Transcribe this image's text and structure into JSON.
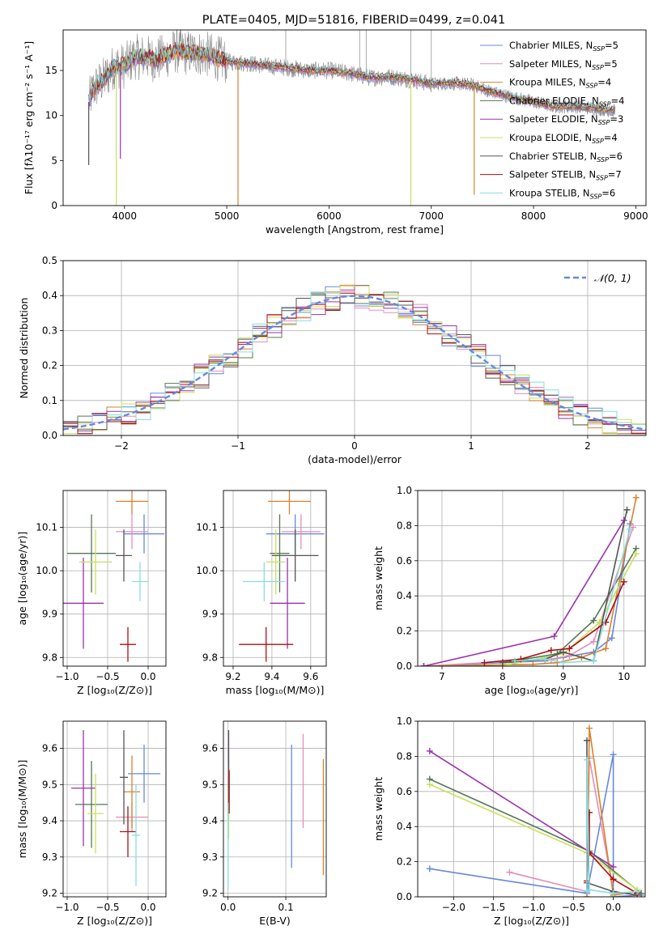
{
  "chart_data": [
    {
      "id": "spectrum",
      "type": "line",
      "title": "PLATE=0405, MJD=51816, FIBERID=0499, z=0.041",
      "xlabel": "wavelength [Angstrom, rest frame]",
      "ylabel": "Flux [fλ10⁻¹⁷ erg cm⁻² s⁻¹ A⁻¹]",
      "xlim": [
        3400,
        9100
      ],
      "ylim": [
        0,
        19.5
      ],
      "xticks": [
        4000,
        5000,
        6000,
        7000,
        8000,
        9000
      ],
      "yticks": [
        0,
        5,
        10,
        15
      ],
      "grid": false,
      "legend_position": "upper-right",
      "data": {
        "name": "data",
        "x": [
          3650,
          3700,
          3800,
          3900,
          4000,
          4100,
          4200,
          4300,
          4400,
          4500,
          4600,
          4700,
          4800,
          4900,
          5000,
          5200,
          5400,
          5600,
          5800,
          6000,
          6200,
          6400,
          6600,
          6800,
          7000,
          7200,
          7400,
          7600,
          7800,
          8000,
          8200,
          8400,
          8600,
          8800
        ],
        "y": [
          11.5,
          13,
          14,
          15.5,
          15.5,
          16.5,
          16.5,
          16.2,
          16.6,
          17.2,
          17.0,
          17.0,
          16.8,
          16.4,
          16.0,
          15.8,
          15.5,
          15.3,
          15.0,
          15.0,
          14.7,
          14.2,
          14.3,
          14.0,
          13.5,
          13.6,
          13.4,
          12.6,
          12.0,
          11.5,
          11.0,
          11.0,
          10.8,
          10.5
        ]
      },
      "spikes": [
        {
          "series": "Kroupa ELODIE",
          "x": 3920,
          "y": 0
        },
        {
          "series": "Kroupa MILES",
          "x": 5110,
          "y": 0
        },
        {
          "series": "Kroupa ELODIE",
          "x": 6800,
          "y": 0
        },
        {
          "series": "Kroupa MILES",
          "x": 7420,
          "y": 1.2
        },
        {
          "series": "Salpeter ELODIE",
          "x": 3960,
          "y": 5.2
        },
        {
          "series": "Chabrier STELIB",
          "x": 3650,
          "y": 4.5
        }
      ],
      "series": [
        {
          "name": "Chabrier MILES, N_SSP=5",
          "label_main": "Chabrier MILES, N",
          "label_sub": "SSP",
          "label_tail": "=5",
          "color": "#6688dd"
        },
        {
          "name": "Salpeter MILES, N_SSP=5",
          "label_main": "Salpeter MILES, N",
          "label_sub": "SSP",
          "label_tail": "=5",
          "color": "#e58fb8"
        },
        {
          "name": "Kroupa MILES, N_SSP=4",
          "label_main": "Kroupa MILES, N",
          "label_sub": "SSP",
          "label_tail": "=4",
          "color": "#d9822b"
        },
        {
          "name": "Chabrier ELODIE, N_SSP=4",
          "label_main": "Chabrier ELODIE, N",
          "label_sub": "SSP",
          "label_tail": "=4",
          "color": "#557755"
        },
        {
          "name": "Salpeter ELODIE, N_SSP=3",
          "label_main": "Salpeter ELODIE, N",
          "label_sub": "SSP",
          "label_tail": "=3",
          "color": "#9933aa"
        },
        {
          "name": "Kroupa ELODIE, N_SSP=4",
          "label_main": "Kroupa ELODIE, N",
          "label_sub": "SSP",
          "label_tail": "=4",
          "color": "#c8e05a"
        },
        {
          "name": "Chabrier STELIB, N_SSP=6",
          "label_main": "Chabrier STELIB, N",
          "label_sub": "SSP",
          "label_tail": "=6",
          "color": "#555555"
        },
        {
          "name": "Salpeter STELIB, N_SSP=7",
          "label_main": "Salpeter STELIB, N",
          "label_sub": "SSP",
          "label_tail": "=7",
          "color": "#aa1111"
        },
        {
          "name": "Kroupa STELIB, N_SSP=6",
          "label_main": "Kroupa STELIB, N",
          "label_sub": "SSP",
          "label_tail": "=6",
          "color": "#88dddd"
        }
      ]
    },
    {
      "id": "residuals",
      "type": "line",
      "xlabel": "(data-model)/error",
      "ylabel": "Normed distribution",
      "xlim": [
        -2.5,
        2.5
      ],
      "ylim": [
        0,
        0.5
      ],
      "xticks": [
        -2,
        -1,
        0,
        1,
        2
      ],
      "yticks": [
        0.0,
        0.1,
        0.2,
        0.3,
        0.4,
        0.5
      ],
      "grid": true,
      "legend_position": "upper-right",
      "legend": "𝒩(0, 1)",
      "gaussian": {
        "mean": 0,
        "sigma": 1,
        "color": "#6688dd"
      },
      "bin_width": 0.125
    },
    {
      "id": "age_vs_Z",
      "type": "scatter",
      "xlabel": "Z [log₁₀(Z/Z⊙)]",
      "ylabel": "age  [log₁₀(age/yr)]",
      "xlim": [
        -1.05,
        0.22
      ],
      "ylim": [
        9.78,
        10.185
      ],
      "xticks": [
        -1.0,
        -0.5,
        0.0
      ],
      "yticks": [
        9.8,
        9.9,
        10.0,
        10.1
      ],
      "grid": true,
      "points": [
        {
          "series": "Chabrier MILES",
          "x": -0.05,
          "y": 10.085,
          "xerr": 0.25,
          "yerr": 0.045
        },
        {
          "series": "Salpeter MILES",
          "x": -0.2,
          "y": 10.09,
          "xerr": 0.2,
          "yerr": 0.04
        },
        {
          "series": "Kroupa MILES",
          "x": -0.2,
          "y": 10.16,
          "xerr": 0.2,
          "yerr": 0.03
        },
        {
          "series": "Chabrier ELODIE",
          "x": -0.7,
          "y": 10.04,
          "xerr": 0.3,
          "yerr": 0.09
        },
        {
          "series": "Salpeter ELODIE",
          "x": -0.8,
          "y": 9.925,
          "xerr": 0.25,
          "yerr": 0.105
        },
        {
          "series": "Kroupa ELODIE",
          "x": -0.65,
          "y": 10.02,
          "xerr": 0.2,
          "yerr": 0.075
        },
        {
          "series": "Chabrier STELIB",
          "x": -0.3,
          "y": 10.035,
          "xerr": 0.1,
          "yerr": 0.06
        },
        {
          "series": "Salpeter STELIB",
          "x": -0.25,
          "y": 9.83,
          "xerr": 0.1,
          "yerr": 0.04
        },
        {
          "series": "Kroupa STELIB",
          "x": -0.1,
          "y": 9.975,
          "xerr": 0.1,
          "yerr": 0.045
        }
      ]
    },
    {
      "id": "age_vs_mass",
      "type": "scatter",
      "xlabel": "mass [log₁₀(M/M⊙)]",
      "ylabel": "",
      "xlim": [
        9.15,
        9.68
      ],
      "ylim": [
        9.78,
        10.185
      ],
      "xticks": [
        9.2,
        9.4,
        9.6
      ],
      "yticks": [
        9.8,
        9.9,
        10.0,
        10.1
      ],
      "grid": true,
      "points": [
        {
          "series": "Chabrier MILES",
          "x": 9.52,
          "y": 10.085,
          "xerr": 0.15,
          "yerr": 0.045
        },
        {
          "series": "Salpeter MILES",
          "x": 9.55,
          "y": 10.09,
          "xerr": 0.1,
          "yerr": 0.04
        },
        {
          "series": "Kroupa MILES",
          "x": 9.49,
          "y": 10.16,
          "xerr": 0.11,
          "yerr": 0.03
        },
        {
          "series": "Chabrier ELODIE",
          "x": 9.44,
          "y": 10.04,
          "xerr": 0.05,
          "yerr": 0.09
        },
        {
          "series": "Salpeter ELODIE",
          "x": 9.48,
          "y": 9.925,
          "xerr": 0.09,
          "yerr": 0.105
        },
        {
          "series": "Kroupa ELODIE",
          "x": 9.42,
          "y": 10.02,
          "xerr": 0.05,
          "yerr": 0.075
        },
        {
          "series": "Chabrier STELIB",
          "x": 9.52,
          "y": 10.035,
          "xerr": 0.12,
          "yerr": 0.06
        },
        {
          "series": "Salpeter STELIB",
          "x": 9.37,
          "y": 9.83,
          "xerr": 0.14,
          "yerr": 0.04
        },
        {
          "series": "Kroupa STELIB",
          "x": 9.36,
          "y": 9.975,
          "xerr": 0.11,
          "yerr": 0.045
        }
      ]
    },
    {
      "id": "mass_weight_vs_age",
      "type": "line",
      "xlabel": "age  [log₁₀(age/yr)]",
      "ylabel": "mass weight",
      "xlim": [
        6.6,
        10.35
      ],
      "ylim": [
        0,
        1.0
      ],
      "xticks": [
        7,
        8,
        9,
        10
      ],
      "yticks": [
        0.0,
        0.2,
        0.4,
        0.6,
        0.8,
        1.0
      ],
      "grid": true,
      "series": [
        {
          "series": "Chabrier MILES",
          "x": [
            6.7,
            8.0,
            8.7,
            9.0,
            9.5,
            9.8,
            10.1
          ],
          "y": [
            0.0,
            0.02,
            0.03,
            0.05,
            0.08,
            0.16,
            0.81
          ]
        },
        {
          "series": "Salpeter MILES",
          "x": [
            6.7,
            8.2,
            8.8,
            9.1,
            9.5,
            10.15
          ],
          "y": [
            0.0,
            0.03,
            0.04,
            0.06,
            0.14,
            0.79
          ]
        },
        {
          "series": "Kroupa MILES",
          "x": [
            6.7,
            8.5,
            8.9,
            9.3,
            9.7,
            10.2
          ],
          "y": [
            0.0,
            0.01,
            0.02,
            0.05,
            0.1,
            0.96
          ]
        },
        {
          "series": "Chabrier ELODIE",
          "x": [
            8.0,
            8.9,
            9.5,
            10.2
          ],
          "y": [
            0.02,
            0.07,
            0.26,
            0.67
          ]
        },
        {
          "series": "Salpeter ELODIE",
          "x": [
            6.7,
            8.85,
            10.0
          ],
          "y": [
            0.0,
            0.17,
            0.83
          ]
        },
        {
          "series": "Kroupa ELODIE",
          "x": [
            8.1,
            9.0,
            9.6,
            10.2
          ],
          "y": [
            0.01,
            0.07,
            0.25,
            0.64
          ]
        },
        {
          "series": "Chabrier STELIB",
          "x": [
            8.0,
            8.7,
            9.0,
            9.5,
            10.05
          ],
          "y": [
            0.02,
            0.04,
            0.08,
            0.03,
            0.89
          ]
        },
        {
          "series": "Salpeter STELIB",
          "x": [
            7.7,
            8.3,
            8.8,
            9.1,
            9.7,
            10.0
          ],
          "y": [
            0.02,
            0.04,
            0.09,
            0.1,
            0.25,
            0.48
          ]
        },
        {
          "series": "Kroupa STELIB",
          "x": [
            8.2,
            8.7,
            9.0,
            9.5,
            10.1
          ],
          "y": [
            0.03,
            0.04,
            0.02,
            0.03,
            0.78
          ]
        }
      ]
    },
    {
      "id": "mass_vs_Z",
      "type": "scatter",
      "xlabel": "Z [log₁₀(Z/Z⊙)]",
      "ylabel": "mass [log₁₀(M/M⊙)]",
      "xlim": [
        -1.05,
        0.22
      ],
      "ylim": [
        9.19,
        9.675
      ],
      "xticks": [
        -1.0,
        -0.5,
        0.0
      ],
      "yticks": [
        9.2,
        9.3,
        9.4,
        9.5,
        9.6
      ],
      "grid": true,
      "points": [
        {
          "series": "Chabrier MILES",
          "x": -0.05,
          "y": 9.53,
          "xerr": 0.2,
          "yerr": 0.08
        },
        {
          "series": "Salpeter MILES",
          "x": -0.2,
          "y": 9.41,
          "xerr": 0.2,
          "yerr": 0.04
        },
        {
          "series": "Kroupa MILES",
          "x": -0.2,
          "y": 9.48,
          "xerr": 0.1,
          "yerr": 0.1
        },
        {
          "series": "Chabrier ELODIE",
          "x": -0.7,
          "y": 9.445,
          "xerr": 0.2,
          "yerr": 0.12
        },
        {
          "series": "Salpeter ELODIE",
          "x": -0.8,
          "y": 9.49,
          "xerr": 0.15,
          "yerr": 0.16
        },
        {
          "series": "Kroupa ELODIE",
          "x": -0.65,
          "y": 9.42,
          "xerr": 0.1,
          "yerr": 0.11
        },
        {
          "series": "Chabrier STELIB",
          "x": -0.3,
          "y": 9.52,
          "xerr": 0.05,
          "yerr": 0.13
        },
        {
          "series": "Salpeter STELIB",
          "x": -0.25,
          "y": 9.37,
          "xerr": 0.1,
          "yerr": 0.07
        },
        {
          "series": "Kroupa STELIB",
          "x": -0.15,
          "y": 9.36,
          "xerr": 0.05,
          "yerr": 0.14
        }
      ]
    },
    {
      "id": "mass_vs_EBV",
      "type": "scatter",
      "xlabel": "E(B-V)",
      "ylabel": "",
      "xlim": [
        -0.008,
        0.17
      ],
      "ylim": [
        9.19,
        9.675
      ],
      "xticks": [
        0.0,
        0.1
      ],
      "yticks": [
        9.2,
        9.3,
        9.4,
        9.5,
        9.6
      ],
      "grid": true,
      "points": [
        {
          "series": "Chabrier MILES",
          "x": 0.11,
          "y": 9.44,
          "yerr": 0.17
        },
        {
          "series": "Salpeter MILES",
          "x": 0.13,
          "y": 9.51,
          "yerr": 0.13
        },
        {
          "series": "Kroupa MILES",
          "x": 0.165,
          "y": 9.41,
          "yerr": 0.16
        },
        {
          "series": "Chabrier ELODIE",
          "x": 0.001,
          "y": 9.5,
          "yerr": 0.1
        },
        {
          "series": "Salpeter ELODIE",
          "x": 0.001,
          "y": 9.55,
          "yerr": 0.1
        },
        {
          "series": "Kroupa ELODIE",
          "x": 0.001,
          "y": 9.45,
          "yerr": 0.1
        },
        {
          "series": "Chabrier STELIB",
          "x": 0.001,
          "y": 9.55,
          "yerr": 0.1
        },
        {
          "series": "Salpeter STELIB",
          "x": 0.002,
          "y": 9.48,
          "yerr": 0.06
        },
        {
          "series": "Kroupa STELIB",
          "x": 0.0,
          "y": 9.33,
          "yerr": 0.12
        }
      ]
    },
    {
      "id": "mass_weight_vs_Z",
      "type": "line",
      "xlabel": "Z [log₁₀(Z/Z⊙)]",
      "ylabel": "mass weight",
      "xlim": [
        -2.45,
        0.4
      ],
      "ylim": [
        0,
        1.0
      ],
      "xticks": [
        -2.0,
        -1.5,
        -1.0,
        -0.5,
        0.0
      ],
      "yticks": [
        0.0,
        0.2,
        0.4,
        0.6,
        0.8,
        1.0
      ],
      "grid": true,
      "series": [
        {
          "series": "Chabrier MILES",
          "x": [
            -2.3,
            -0.33,
            0.0,
            0.0,
            0.35
          ],
          "y": [
            0.16,
            0.02,
            0.81,
            0.0,
            0.01
          ]
        },
        {
          "series": "Salpeter MILES",
          "x": [
            -1.3,
            -0.33,
            -0.3,
            0.0,
            0.3
          ],
          "y": [
            0.14,
            0.03,
            0.79,
            0.03,
            0.01
          ]
        },
        {
          "series": "Kroupa MILES",
          "x": [
            -0.33,
            -0.3,
            0.0,
            0.3
          ],
          "y": [
            0.0,
            0.96,
            0.01,
            0.03
          ]
        },
        {
          "series": "Chabrier ELODIE",
          "x": [
            -2.3,
            -0.3,
            0.35
          ],
          "y": [
            0.67,
            0.26,
            0.02
          ]
        },
        {
          "series": "Salpeter ELODIE",
          "x": [
            -2.3,
            0.0
          ],
          "y": [
            0.83,
            0.17
          ]
        },
        {
          "series": "Kroupa ELODIE",
          "x": [
            -2.3,
            -0.33,
            0.3
          ],
          "y": [
            0.64,
            0.25,
            0.04
          ]
        },
        {
          "series": "Chabrier STELIB",
          "x": [
            -0.33,
            -0.33,
            -0.33,
            0.0,
            0.3
          ],
          "y": [
            0.03,
            0.89,
            0.08,
            0.03,
            0.01
          ]
        },
        {
          "series": "Salpeter STELIB",
          "x": [
            -0.33,
            -0.3,
            -0.3,
            0.0,
            0.3
          ],
          "y": [
            0.09,
            0.48,
            0.25,
            0.1,
            0.02
          ]
        },
        {
          "series": "Kroupa STELIB",
          "x": [
            -0.33,
            -0.33,
            -0.3,
            0.0,
            0.3
          ],
          "y": [
            0.03,
            0.78,
            0.04,
            0.02,
            0.03
          ]
        }
      ]
    }
  ]
}
